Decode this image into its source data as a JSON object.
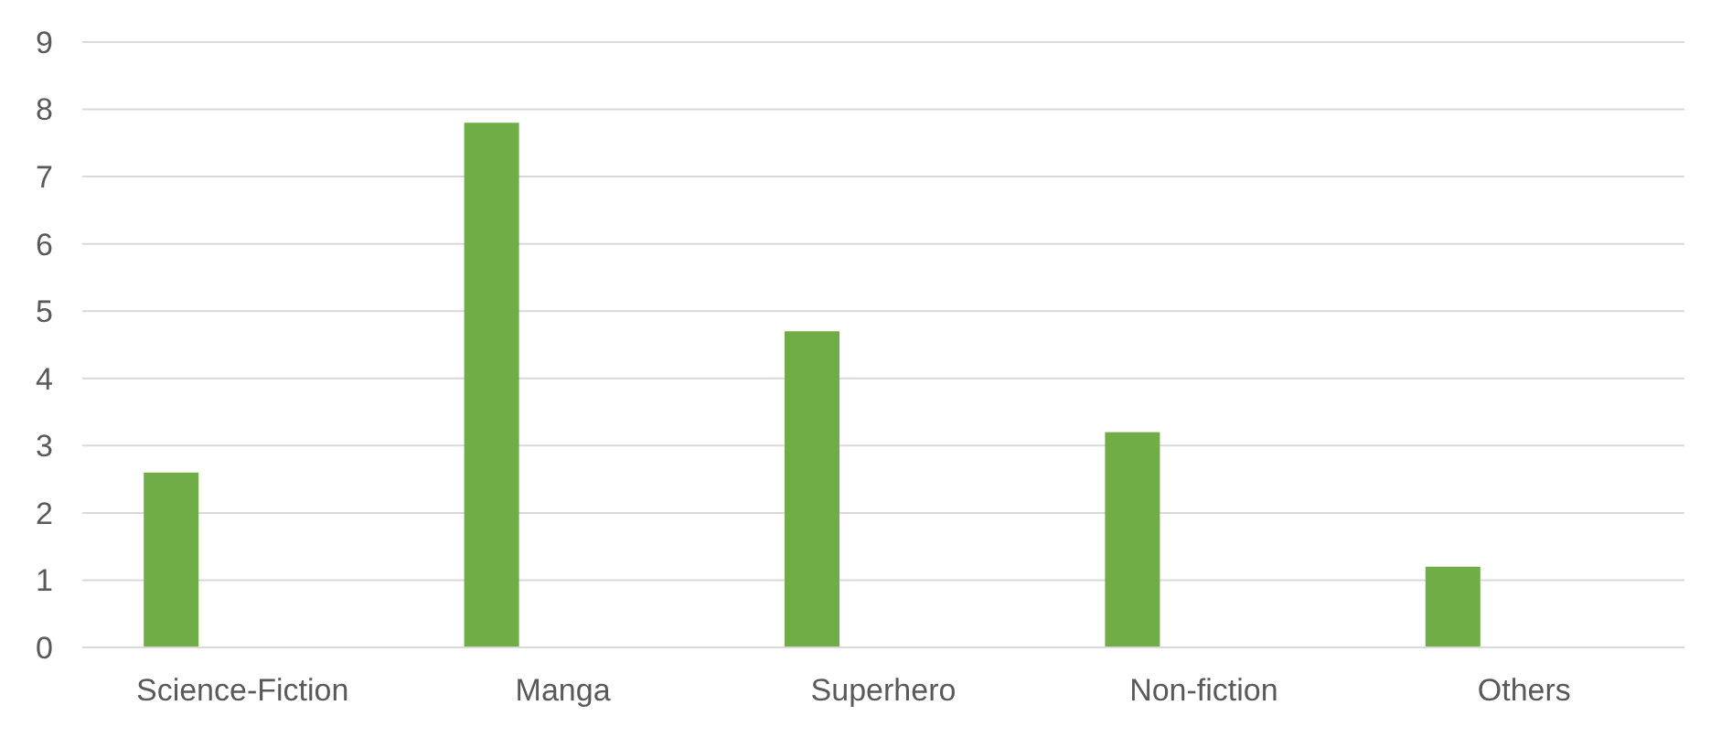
{
  "chart_data": {
    "type": "bar",
    "categories": [
      "Science-Fiction",
      "Manga",
      "Superhero",
      "Non-fiction",
      "Others"
    ],
    "values": [
      2.6,
      7.8,
      4.7,
      3.2,
      1.2
    ],
    "color": "#70ad47",
    "ylim": [
      0,
      9
    ],
    "yticks": [
      0,
      1,
      2,
      3,
      4,
      5,
      6,
      7,
      8,
      9
    ],
    "grid": "y"
  }
}
